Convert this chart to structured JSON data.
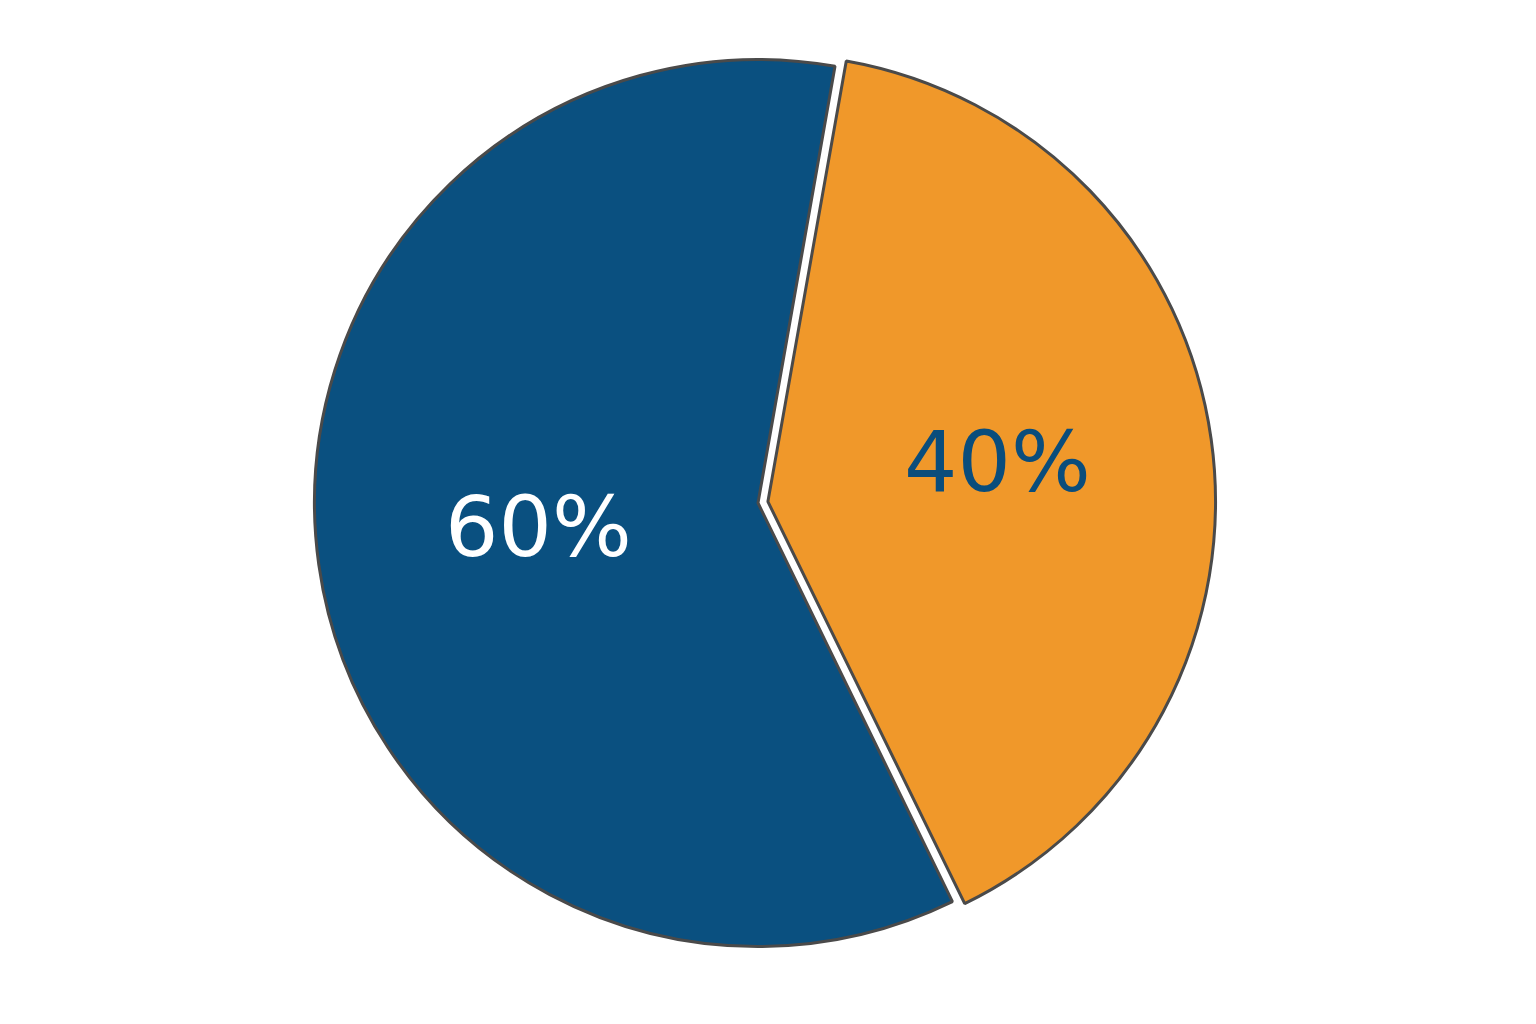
{
  "chart_data": {
    "type": "pie",
    "categories": [
      null,
      null
    ],
    "values": [
      40,
      60
    ],
    "colors": [
      "#f0982a",
      "#0a5080"
    ],
    "value_labels": [
      "40%",
      "60%"
    ],
    "legend": false
  }
}
